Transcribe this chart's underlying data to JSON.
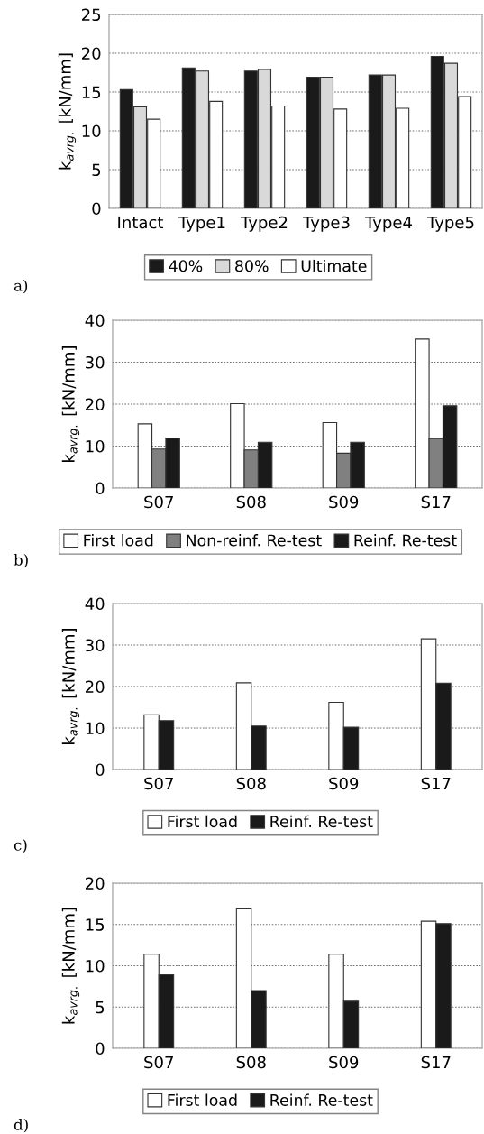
{
  "chart_data": [
    {
      "type": "bar",
      "categories": [
        "Intact",
        "Type1",
        "Type2",
        "Type3",
        "Type4",
        "Type5"
      ],
      "ylabel": "k$_{avrg.}$ [kN/mm]",
      "ylim": [
        0,
        25
      ],
      "yticks": [
        0,
        5,
        10,
        15,
        20,
        25
      ],
      "grid": "y",
      "legend": "bottom",
      "annotations": [
        "a)"
      ],
      "series": [
        {
          "name": "40%",
          "color": "#1a1a1a",
          "values": [
            15.3,
            18.1,
            17.7,
            16.9,
            17.2,
            19.6
          ]
        },
        {
          "name": "80%",
          "color": "#d9d9d9",
          "values": [
            13.1,
            17.7,
            17.9,
            16.9,
            17.2,
            18.7
          ]
        },
        {
          "name": "Ultimate",
          "color": "#ffffff",
          "values": [
            11.5,
            13.8,
            13.2,
            12.8,
            12.9,
            14.4
          ]
        }
      ]
    },
    {
      "type": "bar",
      "categories": [
        "S07",
        "S08",
        "S09",
        "S17"
      ],
      "ylabel": "k$_{avrg.}$ [kN/mm]",
      "ylim": [
        0,
        40
      ],
      "yticks": [
        0,
        10,
        20,
        30,
        40
      ],
      "grid": "y",
      "legend": "bottom",
      "annotations": [
        "b)"
      ],
      "series": [
        {
          "name": "First load",
          "color": "#ffffff",
          "values": [
            15.3,
            20.1,
            15.6,
            35.5
          ]
        },
        {
          "name": "Non-reinf. Re-test",
          "color": "#808080",
          "values": [
            9.3,
            9.1,
            8.3,
            11.8
          ]
        },
        {
          "name": "Reinf. Re-test",
          "color": "#1a1a1a",
          "values": [
            11.9,
            10.9,
            10.9,
            19.6
          ]
        }
      ]
    },
    {
      "type": "bar",
      "categories": [
        "S07",
        "S08",
        "S09",
        "S17"
      ],
      "ylabel": "k$_{avrg.}$ [kN/mm]",
      "ylim": [
        0,
        40
      ],
      "yticks": [
        0,
        10,
        20,
        30,
        40
      ],
      "grid": "y",
      "legend": "bottom",
      "annotations": [
        "c)"
      ],
      "series": [
        {
          "name": "First load",
          "color": "#ffffff",
          "values": [
            13.2,
            20.9,
            16.2,
            31.5
          ]
        },
        {
          "name": "Reinf. Re-test",
          "color": "#1a1a1a",
          "values": [
            11.8,
            10.5,
            10.2,
            20.8
          ]
        }
      ]
    },
    {
      "type": "bar",
      "categories": [
        "S07",
        "S08",
        "S09",
        "S17"
      ],
      "ylabel": "k$_{avrg.}$ [kN/mm]",
      "ylim": [
        0,
        20
      ],
      "yticks": [
        0,
        5,
        10,
        15,
        20
      ],
      "grid": "y",
      "legend": "bottom",
      "annotations": [
        "d)"
      ],
      "series": [
        {
          "name": "First load",
          "color": "#ffffff",
          "values": [
            11.4,
            16.9,
            11.4,
            15.4
          ]
        },
        {
          "name": "Reinf. Re-test",
          "color": "#1a1a1a",
          "values": [
            8.9,
            7.0,
            5.7,
            15.1
          ]
        }
      ]
    }
  ]
}
